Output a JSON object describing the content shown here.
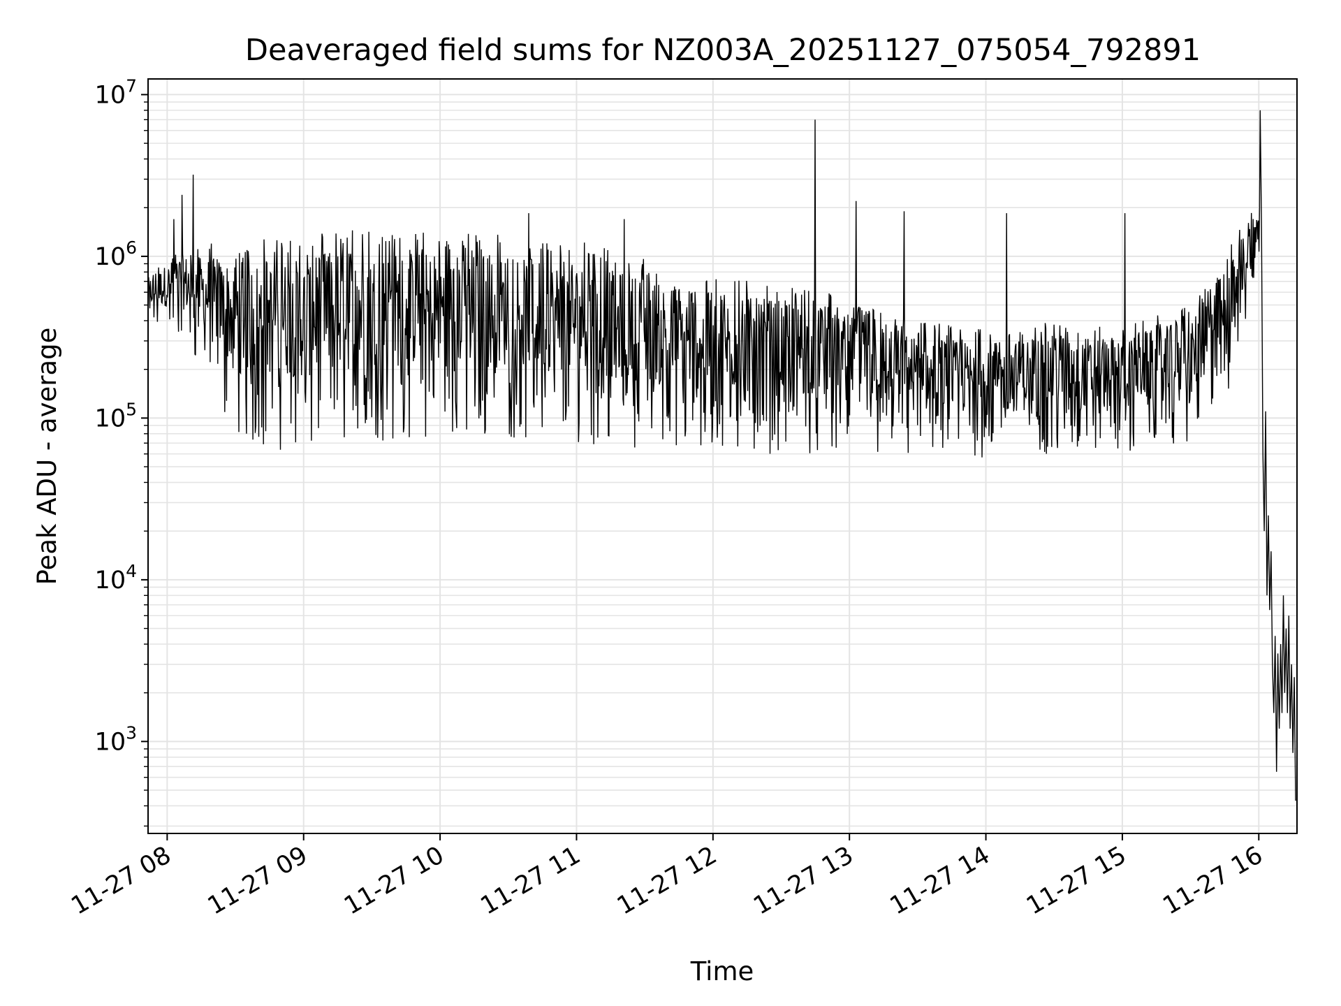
{
  "chart_data": {
    "type": "line",
    "title": "Deaveraged field sums for NZ003A_20251127_075054_792891",
    "xlabel": "Time",
    "ylabel": "Peak ADU - average",
    "yscale": "log",
    "ylim": [
      270,
      12500000
    ],
    "xlim_hours": [
      7.86,
      16.28
    ],
    "grid": true,
    "x_ticks": [
      {
        "hour": 8,
        "label": "11-27 08"
      },
      {
        "hour": 9,
        "label": "11-27 09"
      },
      {
        "hour": 10,
        "label": "11-27 10"
      },
      {
        "hour": 11,
        "label": "11-27 11"
      },
      {
        "hour": 12,
        "label": "11-27 12"
      },
      {
        "hour": 13,
        "label": "11-27 13"
      },
      {
        "hour": 14,
        "label": "11-27 14"
      },
      {
        "hour": 15,
        "label": "11-27 15"
      },
      {
        "hour": 16,
        "label": "11-27 16"
      }
    ],
    "y_ticks": [
      {
        "value": 1000,
        "base": "10",
        "exp": "3"
      },
      {
        "value": 10000,
        "base": "10",
        "exp": "4"
      },
      {
        "value": 100000,
        "base": "10",
        "exp": "5"
      },
      {
        "value": 1000000,
        "base": "10",
        "exp": "6"
      },
      {
        "value": 10000000,
        "base": "10",
        "exp": "7"
      }
    ],
    "series": [
      {
        "name": "Peak ADU - average",
        "color": "#000000",
        "envelope": [
          {
            "t": 7.86,
            "lo": 380000,
            "hi": 800000
          },
          {
            "t": 8.1,
            "lo": 300000,
            "hi": 1200000
          },
          {
            "t": 8.3,
            "lo": 180000,
            "hi": 1200000
          },
          {
            "t": 8.5,
            "lo": 70000,
            "hi": 1300000
          },
          {
            "t": 9.0,
            "lo": 60000,
            "hi": 1350000
          },
          {
            "t": 9.5,
            "lo": 70000,
            "hi": 1500000
          },
          {
            "t": 10.0,
            "lo": 75000,
            "hi": 1450000
          },
          {
            "t": 10.5,
            "lo": 75000,
            "hi": 1350000
          },
          {
            "t": 11.0,
            "lo": 70000,
            "hi": 1250000
          },
          {
            "t": 11.5,
            "lo": 65000,
            "hi": 1000000
          },
          {
            "t": 12.0,
            "lo": 60000,
            "hi": 750000
          },
          {
            "t": 12.5,
            "lo": 60000,
            "hi": 700000
          },
          {
            "t": 13.0,
            "lo": 60000,
            "hi": 550000
          },
          {
            "t": 13.5,
            "lo": 55000,
            "hi": 400000
          },
          {
            "t": 14.0,
            "lo": 55000,
            "hi": 350000
          },
          {
            "t": 14.5,
            "lo": 60000,
            "hi": 400000
          },
          {
            "t": 15.0,
            "lo": 60000,
            "hi": 380000
          },
          {
            "t": 15.5,
            "lo": 70000,
            "hi": 500000
          },
          {
            "t": 15.8,
            "lo": 150000,
            "hi": 1200000
          },
          {
            "t": 16.0,
            "lo": 900000,
            "hi": 2400000
          }
        ],
        "spikes": [
          {
            "t": 8.19,
            "value": 3200000
          },
          {
            "t": 8.11,
            "value": 2400000
          },
          {
            "t": 8.05,
            "value": 1700000
          },
          {
            "t": 12.75,
            "value": 7000000
          },
          {
            "t": 10.65,
            "value": 1850000
          },
          {
            "t": 13.05,
            "value": 2200000
          },
          {
            "t": 13.4,
            "value": 1900000
          },
          {
            "t": 15.02,
            "value": 1850000
          },
          {
            "t": 11.35,
            "value": 1700000
          },
          {
            "t": 14.15,
            "value": 1850000
          },
          {
            "t": 16.01,
            "value": 8000000
          }
        ],
        "drop_points": [
          {
            "t": 16.02,
            "value": 1500000
          },
          {
            "t": 16.03,
            "value": 60000
          },
          {
            "t": 16.04,
            "value": 20000
          },
          {
            "t": 16.05,
            "value": 110000
          },
          {
            "t": 16.06,
            "value": 8000
          },
          {
            "t": 16.07,
            "value": 25000
          },
          {
            "t": 16.08,
            "value": 6500
          },
          {
            "t": 16.09,
            "value": 15000
          },
          {
            "t": 16.1,
            "value": 3000
          },
          {
            "t": 16.11,
            "value": 1500
          },
          {
            "t": 16.12,
            "value": 4500
          },
          {
            "t": 16.13,
            "value": 650
          },
          {
            "t": 16.14,
            "value": 3500
          },
          {
            "t": 16.15,
            "value": 1200
          },
          {
            "t": 16.16,
            "value": 4000
          },
          {
            "t": 16.17,
            "value": 1500
          },
          {
            "t": 16.18,
            "value": 8000
          },
          {
            "t": 16.19,
            "value": 2000
          },
          {
            "t": 16.2,
            "value": 5000
          },
          {
            "t": 16.21,
            "value": 1500
          },
          {
            "t": 16.22,
            "value": 6000
          },
          {
            "t": 16.23,
            "value": 1200
          },
          {
            "t": 16.24,
            "value": 3000
          },
          {
            "t": 16.25,
            "value": 850
          },
          {
            "t": 16.26,
            "value": 2500
          },
          {
            "t": 16.27,
            "value": 430
          }
        ]
      }
    ]
  }
}
